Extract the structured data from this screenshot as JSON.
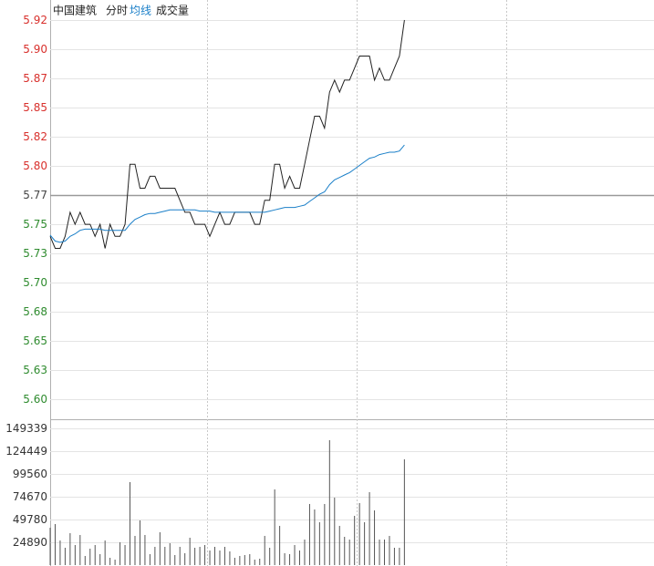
{
  "chart_data": [
    {
      "type": "line",
      "title": "中国建筑",
      "series": [
        {
          "name": "分时",
          "color": "#222222",
          "values": [
            5.74,
            5.73,
            5.73,
            5.74,
            5.76,
            5.75,
            5.76,
            5.75,
            5.75,
            5.74,
            5.75,
            5.73,
            5.75,
            5.74,
            5.74,
            5.75,
            5.8,
            5.8,
            5.78,
            5.78,
            5.79,
            5.79,
            5.78,
            5.78,
            5.78,
            5.78,
            5.77,
            5.76,
            5.76,
            5.75,
            5.75,
            5.75,
            5.74,
            5.75,
            5.76,
            5.75,
            5.75,
            5.76,
            5.76,
            5.76,
            5.76,
            5.75,
            5.75,
            5.77,
            5.77,
            5.8,
            5.8,
            5.78,
            5.79,
            5.78,
            5.78,
            5.8,
            5.82,
            5.84,
            5.84,
            5.83,
            5.86,
            5.87,
            5.86,
            5.87,
            5.87,
            5.88,
            5.89,
            5.89,
            5.89,
            5.87,
            5.88,
            5.87,
            5.87,
            5.88,
            5.89,
            5.92
          ]
        },
        {
          "name": "均线",
          "color": "#1a7fc8",
          "values": [
            5.741,
            5.736,
            5.735,
            5.736,
            5.74,
            5.742,
            5.745,
            5.746,
            5.746,
            5.746,
            5.746,
            5.745,
            5.745,
            5.745,
            5.745,
            5.745,
            5.75,
            5.754,
            5.756,
            5.758,
            5.759,
            5.759,
            5.76,
            5.761,
            5.762,
            5.762,
            5.762,
            5.762,
            5.762,
            5.762,
            5.761,
            5.761,
            5.761,
            5.76,
            5.76,
            5.76,
            5.76,
            5.76,
            5.76,
            5.76,
            5.76,
            5.76,
            5.76,
            5.76,
            5.761,
            5.762,
            5.763,
            5.764,
            5.764,
            5.764,
            5.765,
            5.766,
            5.769,
            5.772,
            5.775,
            5.777,
            5.783,
            5.787,
            5.789,
            5.791,
            5.793,
            5.796,
            5.799,
            5.802,
            5.805,
            5.806,
            5.808,
            5.809,
            5.81,
            5.81,
            5.811,
            5.816
          ]
        }
      ],
      "ylim": [
        5.59,
        5.92
      ],
      "yticks": [
        {
          "value": 5.6043,
          "label": "5.60"
        },
        {
          "value": 5.6286,
          "label": "5.63"
        },
        {
          "value": 5.6529,
          "label": "5.65"
        },
        {
          "value": 5.6771,
          "label": "5.68"
        },
        {
          "value": 5.7014,
          "label": "5.70"
        },
        {
          "value": 5.7257,
          "label": "5.73"
        },
        {
          "value": 5.75,
          "label": "5.75"
        },
        {
          "value": 5.7743,
          "label": "5.77"
        },
        {
          "value": 5.7986,
          "label": "5.80"
        },
        {
          "value": 5.8229,
          "label": "5.82"
        },
        {
          "value": 5.8471,
          "label": "5.85"
        },
        {
          "value": 5.8714,
          "label": "5.87"
        },
        {
          "value": 5.8957,
          "label": "5.90"
        },
        {
          "value": 5.92,
          "label": "5.92"
        }
      ],
      "up_color": "#d8302c",
      "down_color": "#2e8b2e",
      "grid": true
    },
    {
      "type": "bar",
      "title": "成交量",
      "color": "#555555",
      "values": [
        40836,
        44820,
        26892,
        18924,
        34860,
        21912,
        32868,
        9960,
        17928,
        21912,
        11952,
        26892,
        7968,
        5976,
        24900,
        21912,
        90636,
        31872,
        48804,
        32868,
        11952,
        19920,
        35856,
        19920,
        23904,
        10956,
        19920,
        12948,
        29880,
        18924,
        19920,
        21912,
        15936,
        19920,
        15936,
        19920,
        14940,
        7968,
        9960,
        10956,
        11952,
        5976,
        6972,
        31872,
        18924,
        82668,
        42828,
        12948,
        11952,
        21912,
        15936,
        27888,
        66732,
        60756,
        46812,
        66732,
        136452,
        73704,
        42828,
        30876,
        27888,
        53784,
        67728,
        46812,
        79680,
        59760,
        27888,
        27888,
        31872,
        18924,
        18924,
        115536
      ],
      "ylim": [
        0,
        149339
      ],
      "yticks": [
        24890,
        49780,
        74670,
        99560,
        124449,
        149339
      ],
      "grid": true
    }
  ]
}
